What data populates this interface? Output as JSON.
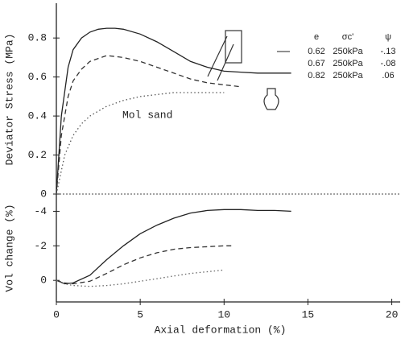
{
  "chart_data": [
    {
      "type": "line",
      "ylabel": "Deviator Stress (MPa)",
      "annotation": "Mol sand",
      "xlim": [
        0,
        20.5
      ],
      "ylim": [
        0,
        0.97
      ],
      "yticks": [
        0,
        0.2,
        0.4,
        0.6,
        0.8
      ],
      "legend": {
        "headers": [
          "e",
          "σc'",
          "ψ"
        ],
        "rows": [
          [
            "250kPa",
            "-.13"
          ],
          [
            "250kPa",
            "-.08"
          ],
          [
            "250kPa",
            ".06"
          ]
        ]
      },
      "series": [
        {
          "name": "0.62",
          "color": "#222",
          "dash": "solid",
          "x": [
            0,
            0.3,
            0.7,
            1,
            1.5,
            2,
            2.5,
            3,
            3.5,
            4,
            5,
            6,
            7,
            8,
            9,
            10,
            11,
            12,
            13,
            14
          ],
          "values": [
            0,
            0.4,
            0.65,
            0.74,
            0.8,
            0.83,
            0.845,
            0.85,
            0.85,
            0.845,
            0.82,
            0.78,
            0.73,
            0.68,
            0.65,
            0.63,
            0.625,
            0.62,
            0.62,
            0.62
          ]
        },
        {
          "name": "0.67",
          "color": "#333",
          "dash": "dashed",
          "x": [
            0,
            0.3,
            0.7,
            1,
            1.5,
            2,
            3,
            4,
            5,
            6,
            7,
            8,
            9,
            10,
            11
          ],
          "values": [
            0,
            0.3,
            0.5,
            0.58,
            0.64,
            0.68,
            0.71,
            0.7,
            0.68,
            0.65,
            0.62,
            0.59,
            0.57,
            0.56,
            0.55
          ]
        },
        {
          "name": "0.82",
          "color": "#555",
          "dash": "dotted",
          "x": [
            0,
            0.5,
            1,
            1.5,
            2,
            3,
            4,
            5,
            6,
            7,
            8,
            9,
            10
          ],
          "values": [
            0,
            0.2,
            0.3,
            0.36,
            0.4,
            0.45,
            0.48,
            0.5,
            0.51,
            0.52,
            0.52,
            0.52,
            0.52
          ]
        }
      ]
    },
    {
      "type": "line",
      "ylabel": "Vol change (%)",
      "xlabel": "Axial deformation (%)",
      "xlim": [
        0,
        20.5
      ],
      "xticks": [
        0,
        5,
        10,
        15,
        20
      ],
      "ylim": [
        1.25,
        -5
      ],
      "yticks": [
        0,
        -2,
        -4
      ],
      "series": [
        {
          "color": "#222",
          "dash": "solid",
          "x": [
            0,
            0.5,
            1,
            2,
            3,
            4,
            5,
            6,
            7,
            8,
            9,
            10,
            11,
            12,
            13,
            14
          ],
          "values": [
            0,
            0.2,
            0.15,
            -0.3,
            -1.2,
            -2,
            -2.7,
            -3.2,
            -3.6,
            -3.9,
            -4.05,
            -4.1,
            -4.1,
            -4.05,
            -4.05,
            -4
          ]
        },
        {
          "color": "#333",
          "dash": "dashed",
          "x": [
            0,
            0.5,
            1,
            2,
            3,
            4,
            5,
            6,
            7,
            8,
            9,
            10,
            10.5
          ],
          "values": [
            0,
            0.15,
            0.2,
            0.05,
            -0.4,
            -0.9,
            -1.3,
            -1.6,
            -1.8,
            -1.9,
            -1.95,
            -2,
            -2
          ]
        },
        {
          "color": "#666",
          "dash": "dotted",
          "x": [
            0,
            0.5,
            1,
            2,
            3,
            4,
            5,
            6,
            7,
            8,
            9,
            10
          ],
          "values": [
            0,
            0.2,
            0.3,
            0.35,
            0.3,
            0.2,
            0.05,
            -0.1,
            -0.25,
            -0.4,
            -0.5,
            -0.6
          ]
        }
      ]
    }
  ]
}
